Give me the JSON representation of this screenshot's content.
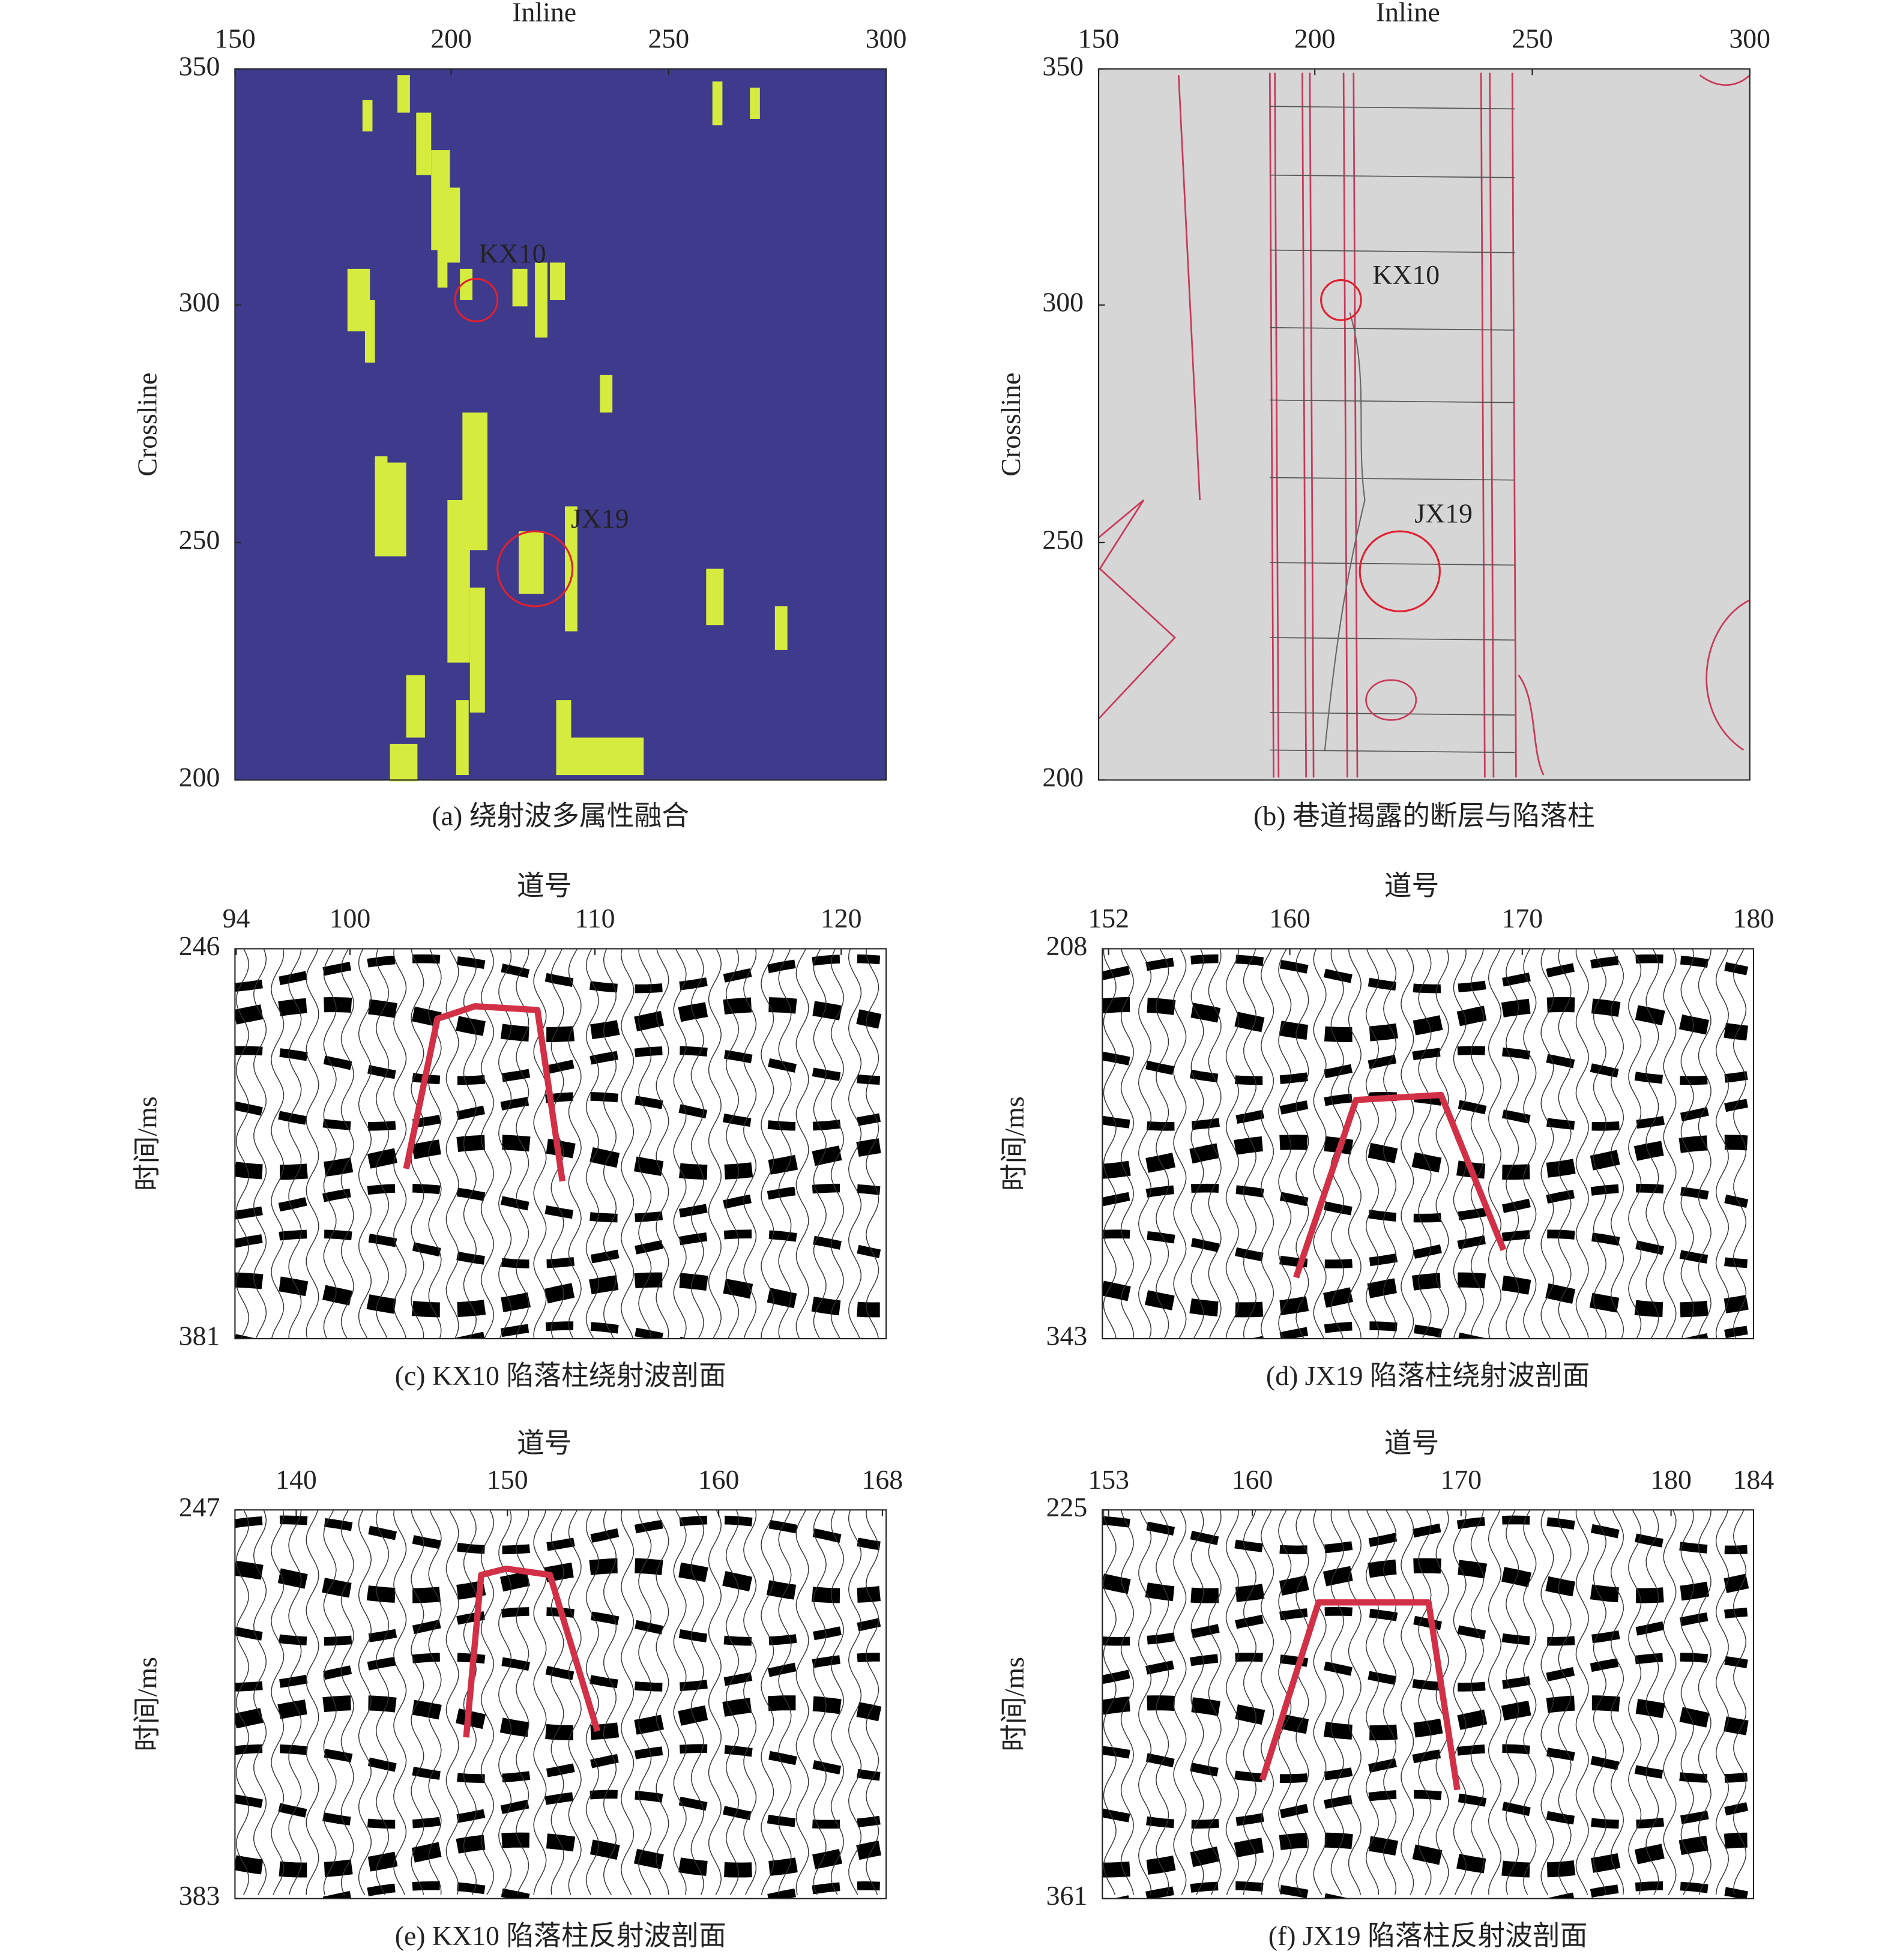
{
  "panels": [
    {
      "caption": "(a) 绕射波多属性融合",
      "x_axis_label": "Inline",
      "y_axis_label": "Crossline",
      "xticks": [
        150,
        200,
        250,
        300
      ],
      "yticks": [
        350,
        300,
        250,
        200
      ],
      "annotations": [
        "KX10",
        "JX19"
      ]
    },
    {
      "caption": "(b) 巷道揭露的断层与陷落柱",
      "x_axis_label": "Inline",
      "y_axis_label": "Crossline",
      "xticks": [
        150,
        200,
        250,
        300
      ],
      "yticks": [
        350,
        300,
        250,
        200
      ],
      "annotations": [
        "KX10",
        "JX19"
      ]
    },
    {
      "caption": "(c) KX10 陷落柱绕射波剖面",
      "x_axis_label": "道号",
      "y_axis_label": "时间/ms",
      "xticks": [
        94,
        100,
        110,
        120
      ],
      "yticks": [
        246,
        381
      ]
    },
    {
      "caption": "(d) JX19 陷落柱绕射波剖面",
      "x_axis_label": "道号",
      "y_axis_label": "时间/ms",
      "xticks": [
        152,
        160,
        170,
        180
      ],
      "yticks": [
        208,
        343
      ]
    },
    {
      "caption": "(e) KX10 陷落柱反射波剖面",
      "x_axis_label": "道号",
      "y_axis_label": "时间/ms",
      "xticks": [
        140,
        150,
        160,
        168
      ],
      "yticks": [
        247,
        383
      ]
    },
    {
      "caption": "(f) JX19 陷落柱反射波剖面",
      "x_axis_label": "道号",
      "y_axis_label": "时间/ms",
      "xticks": [
        153,
        160,
        170,
        180,
        184
      ],
      "yticks": [
        225,
        361
      ]
    }
  ]
}
